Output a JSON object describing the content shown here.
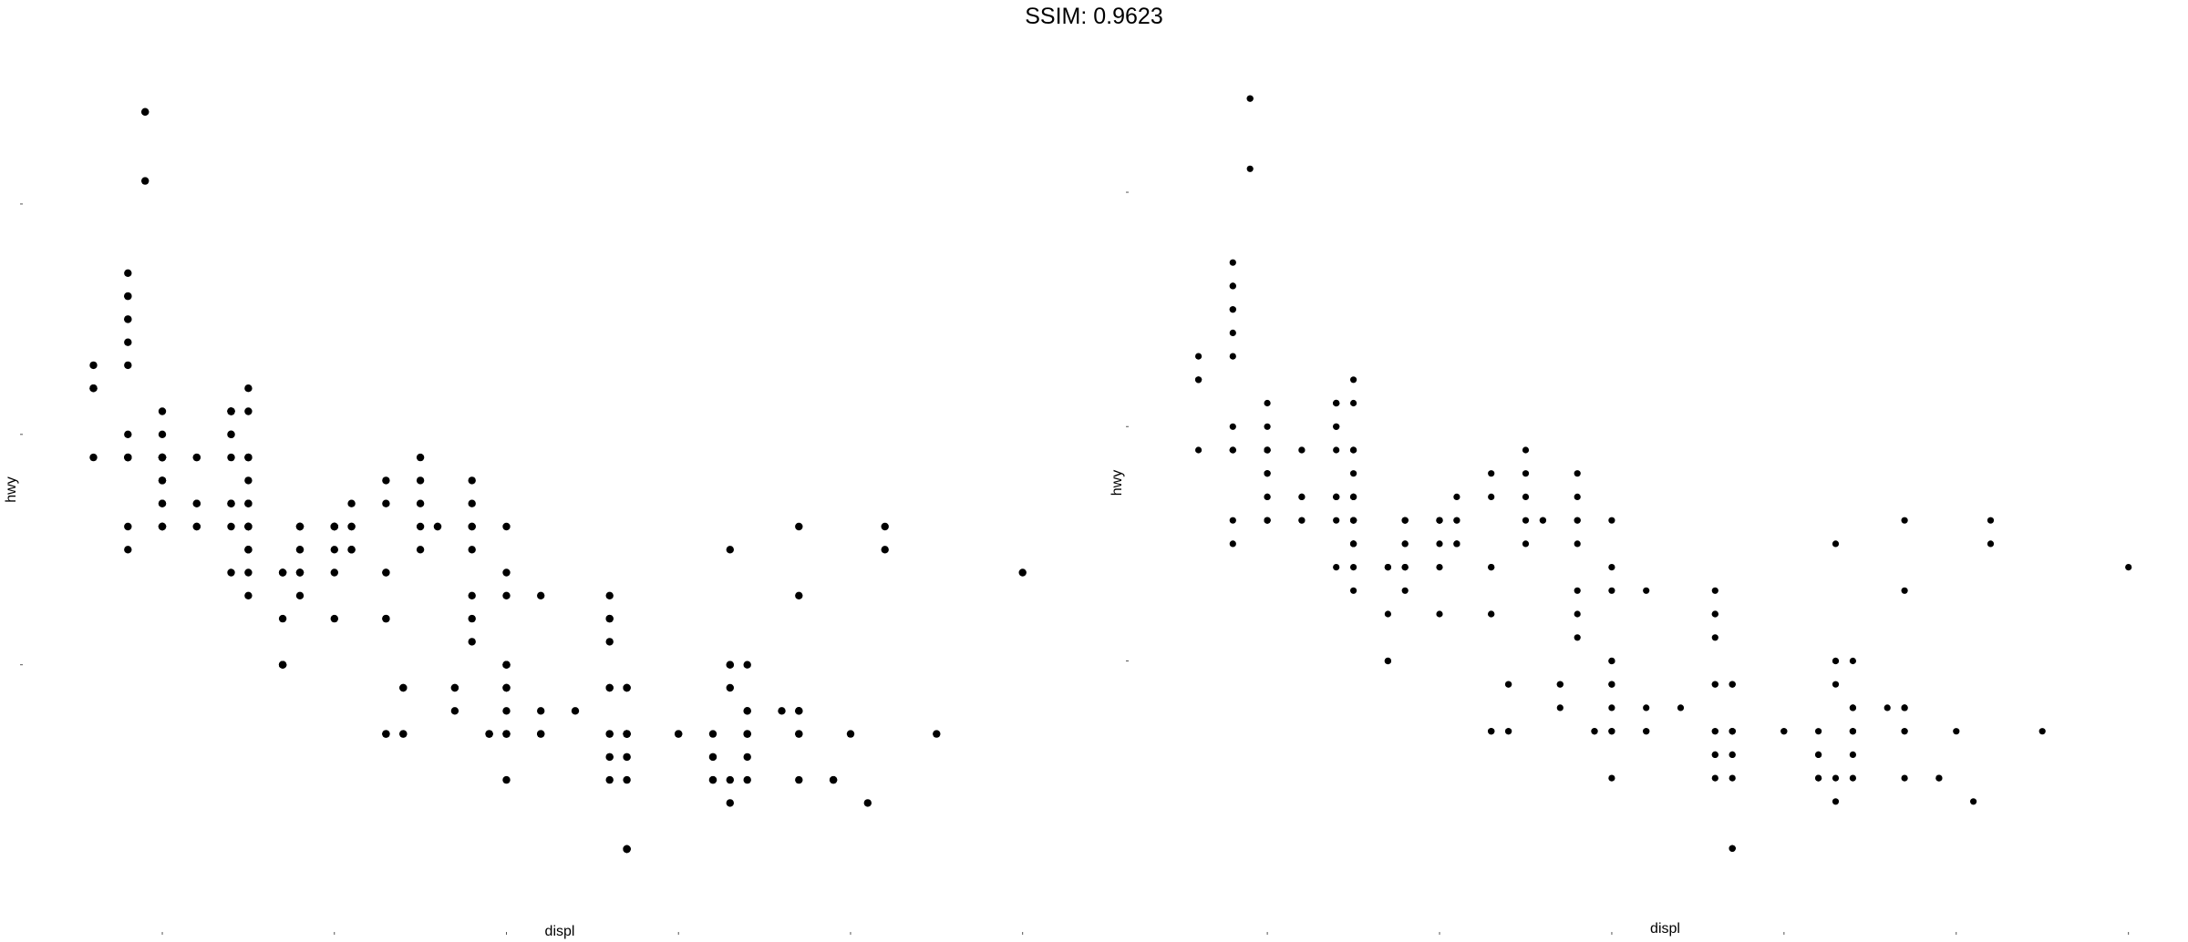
{
  "title": "SSIM: 0.9623",
  "colors": {
    "point": "#000000",
    "tick": "#555555",
    "background": "#ffffff"
  },
  "chart_data": [
    {
      "type": "scatter",
      "xlabel": "displ",
      "ylabel": "hwy",
      "xlim": [
        1.47,
        7.15
      ],
      "ylim": [
        10.3,
        44.9
      ],
      "grid": false,
      "legend": "none",
      "x": [
        1.8,
        1.8,
        2.0,
        2.0,
        2.8,
        2.8,
        3.1,
        1.8,
        1.8,
        2.0,
        2.0,
        2.8,
        2.8,
        3.1,
        3.1,
        2.8,
        3.1,
        4.2,
        5.3,
        5.3,
        5.3,
        5.7,
        6.0,
        5.7,
        5.7,
        6.2,
        6.2,
        7.0,
        5.3,
        5.3,
        5.7,
        6.5,
        2.4,
        2.4,
        3.1,
        3.5,
        3.6,
        2.4,
        3.0,
        3.3,
        3.3,
        3.3,
        3.3,
        3.3,
        3.8,
        3.8,
        3.8,
        4.0,
        3.7,
        3.7,
        3.9,
        3.9,
        4.7,
        4.7,
        4.7,
        5.2,
        5.2,
        3.9,
        4.7,
        4.7,
        4.7,
        5.2,
        5.7,
        5.9,
        4.7,
        4.7,
        4.7,
        4.7,
        4.7,
        4.7,
        5.2,
        5.2,
        5.7,
        5.9,
        4.6,
        5.4,
        5.4,
        4.0,
        4.0,
        4.0,
        4.0,
        4.6,
        5.0,
        4.2,
        4.2,
        4.6,
        4.6,
        4.6,
        5.4,
        5.4,
        3.8,
        3.8,
        4.0,
        4.0,
        4.6,
        4.6,
        4.6,
        4.6,
        5.4,
        1.6,
        1.6,
        1.6,
        1.6,
        1.6,
        1.8,
        1.8,
        1.8,
        2.0,
        2.4,
        2.4,
        2.4,
        2.4,
        2.5,
        2.5,
        3.3,
        2.0,
        2.0,
        2.0,
        2.0,
        2.7,
        2.7,
        2.7,
        3.0,
        3.7,
        4.0,
        4.7,
        4.7,
        4.7,
        5.7,
        6.1,
        4.0,
        4.2,
        4.4,
        4.6,
        5.4,
        5.4,
        5.4,
        4.0,
        4.0,
        4.6,
        5.0,
        2.4,
        2.4,
        2.5,
        2.5,
        3.5,
        3.5,
        3.0,
        3.0,
        3.5,
        3.3,
        3.3,
        4.0,
        5.6,
        3.1,
        3.8,
        3.8,
        3.8,
        5.3,
        2.5,
        2.5,
        2.5,
        2.5,
        2.5,
        2.5,
        2.2,
        2.2,
        2.5,
        2.5,
        2.5,
        2.5,
        2.5,
        2.5,
        2.7,
        2.7,
        3.4,
        3.4,
        4.0,
        4.7,
        2.2,
        2.2,
        2.4,
        2.4,
        3.0,
        3.0,
        3.5,
        2.2,
        2.2,
        2.4,
        2.4,
        3.0,
        3.0,
        3.3,
        1.8,
        1.8,
        1.8,
        1.8,
        1.8,
        4.7,
        5.7,
        2.7,
        2.7,
        2.7,
        3.4,
        3.4,
        4.0,
        4.0,
        2.0,
        2.0,
        2.0,
        2.0,
        2.8,
        1.9,
        2.0,
        2.0,
        2.0,
        2.0,
        2.5,
        2.5,
        2.8,
        2.8,
        1.9,
        1.9,
        2.0,
        2.0,
        2.5,
        2.5,
        1.8,
        1.8,
        2.0,
        2.0,
        2.8,
        2.8,
        3.6
      ],
      "y": [
        29,
        29,
        31,
        30,
        26,
        26,
        27,
        26,
        25,
        28,
        27,
        25,
        25,
        25,
        25,
        24,
        25,
        23,
        20,
        15,
        20,
        17,
        17,
        26,
        23,
        26,
        25,
        24,
        19,
        14,
        15,
        17,
        27,
        30,
        26,
        29,
        26,
        24,
        24,
        22,
        22,
        24,
        24,
        17,
        22,
        21,
        23,
        23,
        19,
        18,
        17,
        17,
        19,
        19,
        12,
        17,
        15,
        17,
        17,
        12,
        17,
        16,
        18,
        15,
        16,
        12,
        17,
        17,
        16,
        12,
        15,
        16,
        17,
        15,
        17,
        17,
        18,
        17,
        19,
        17,
        19,
        19,
        17,
        17,
        17,
        16,
        16,
        17,
        15,
        17,
        26,
        25,
        26,
        24,
        21,
        22,
        23,
        22,
        20,
        33,
        32,
        32,
        29,
        32,
        34,
        36,
        36,
        29,
        26,
        27,
        30,
        31,
        26,
        26,
        28,
        26,
        29,
        28,
        27,
        24,
        24,
        24,
        22,
        19,
        20,
        17,
        12,
        19,
        18,
        14,
        15,
        18,
        18,
        15,
        17,
        16,
        18,
        17,
        19,
        19,
        17,
        29,
        27,
        31,
        32,
        27,
        26,
        26,
        25,
        25,
        17,
        17,
        20,
        18,
        26,
        26,
        27,
        28,
        25,
        25,
        24,
        27,
        25,
        26,
        23,
        26,
        26,
        26,
        26,
        25,
        27,
        25,
        27,
        20,
        20,
        19,
        17,
        20,
        17,
        29,
        27,
        31,
        31,
        26,
        26,
        28,
        27,
        29,
        31,
        31,
        26,
        26,
        27,
        30,
        33,
        35,
        37,
        35,
        15,
        18,
        20,
        20,
        22,
        17,
        19,
        18,
        20,
        29,
        26,
        29,
        29,
        24,
        44,
        29,
        26,
        29,
        29,
        29,
        29,
        23,
        24,
        44,
        41,
        29,
        26,
        28,
        29,
        29,
        29,
        28,
        29,
        26,
        26,
        26
      ]
    },
    {
      "type": "scatter",
      "xlabel": "displ",
      "ylabel": "hwy",
      "xlim": [
        1.47,
        7.15
      ],
      "ylim": [
        10.3,
        44.9
      ],
      "grid": false,
      "legend": "none",
      "x": [
        1.8,
        1.8,
        2.0,
        2.0,
        2.8,
        2.8,
        3.1,
        1.8,
        1.8,
        2.0,
        2.0,
        2.8,
        2.8,
        3.1,
        3.1,
        2.8,
        3.1,
        4.2,
        5.3,
        5.3,
        5.3,
        5.7,
        6.0,
        5.7,
        5.7,
        6.2,
        6.2,
        7.0,
        5.3,
        5.3,
        5.7,
        6.5,
        2.4,
        2.4,
        3.1,
        3.5,
        3.6,
        2.4,
        3.0,
        3.3,
        3.3,
        3.3,
        3.3,
        3.3,
        3.8,
        3.8,
        3.8,
        4.0,
        3.7,
        3.7,
        3.9,
        3.9,
        4.7,
        4.7,
        4.7,
        5.2,
        5.2,
        3.9,
        4.7,
        4.7,
        4.7,
        5.2,
        5.7,
        5.9,
        4.7,
        4.7,
        4.7,
        4.7,
        4.7,
        4.7,
        5.2,
        5.2,
        5.7,
        5.9,
        4.6,
        5.4,
        5.4,
        4.0,
        4.0,
        4.0,
        4.0,
        4.6,
        5.0,
        4.2,
        4.2,
        4.6,
        4.6,
        4.6,
        5.4,
        5.4,
        3.8,
        3.8,
        4.0,
        4.0,
        4.6,
        4.6,
        4.6,
        4.6,
        5.4,
        1.6,
        1.6,
        1.6,
        1.6,
        1.6,
        1.8,
        1.8,
        1.8,
        2.0,
        2.4,
        2.4,
        2.4,
        2.4,
        2.5,
        2.5,
        3.3,
        2.0,
        2.0,
        2.0,
        2.0,
        2.7,
        2.7,
        2.7,
        3.0,
        3.7,
        4.0,
        4.7,
        4.7,
        4.7,
        5.7,
        6.1,
        4.0,
        4.2,
        4.4,
        4.6,
        5.4,
        5.4,
        5.4,
        4.0,
        4.0,
        4.6,
        5.0,
        2.4,
        2.4,
        2.5,
        2.5,
        3.5,
        3.5,
        3.0,
        3.0,
        3.5,
        3.3,
        3.3,
        4.0,
        5.6,
        3.1,
        3.8,
        3.8,
        3.8,
        5.3,
        2.5,
        2.5,
        2.5,
        2.5,
        2.5,
        2.5,
        2.2,
        2.2,
        2.5,
        2.5,
        2.5,
        2.5,
        2.5,
        2.5,
        2.7,
        2.7,
        3.4,
        3.4,
        4.0,
        4.7,
        2.2,
        2.2,
        2.4,
        2.4,
        3.0,
        3.0,
        3.5,
        2.2,
        2.2,
        2.4,
        2.4,
        3.0,
        3.0,
        3.3,
        1.8,
        1.8,
        1.8,
        1.8,
        1.8,
        4.7,
        5.7,
        2.7,
        2.7,
        2.7,
        3.4,
        3.4,
        4.0,
        4.0,
        2.0,
        2.0,
        2.0,
        2.0,
        2.8,
        1.9,
        2.0,
        2.0,
        2.0,
        2.0,
        2.5,
        2.5,
        2.8,
        2.8,
        1.9,
        1.9,
        2.0,
        2.0,
        2.5,
        2.5,
        1.8,
        1.8,
        2.0,
        2.0,
        2.8,
        2.8,
        3.6
      ],
      "y": [
        29,
        29,
        31,
        30,
        26,
        26,
        27,
        26,
        25,
        28,
        27,
        25,
        25,
        25,
        25,
        24,
        25,
        23,
        20,
        15,
        20,
        17,
        17,
        26,
        23,
        26,
        25,
        24,
        19,
        14,
        15,
        17,
        27,
        30,
        26,
        29,
        26,
        24,
        24,
        22,
        22,
        24,
        24,
        17,
        22,
        21,
        23,
        23,
        19,
        18,
        17,
        17,
        19,
        19,
        12,
        17,
        15,
        17,
        17,
        12,
        17,
        16,
        18,
        15,
        16,
        12,
        17,
        17,
        16,
        12,
        15,
        16,
        17,
        15,
        17,
        17,
        18,
        17,
        19,
        17,
        19,
        19,
        17,
        17,
        17,
        16,
        16,
        17,
        15,
        17,
        26,
        25,
        26,
        24,
        21,
        22,
        23,
        22,
        20,
        33,
        32,
        32,
        29,
        32,
        34,
        36,
        36,
        29,
        26,
        27,
        30,
        31,
        26,
        26,
        28,
        26,
        29,
        28,
        27,
        24,
        24,
        24,
        22,
        19,
        20,
        17,
        12,
        19,
        18,
        14,
        15,
        18,
        18,
        15,
        17,
        16,
        18,
        17,
        19,
        19,
        17,
        29,
        27,
        31,
        32,
        27,
        26,
        26,
        25,
        25,
        17,
        17,
        20,
        18,
        26,
        26,
        27,
        28,
        25,
        25,
        24,
        27,
        25,
        26,
        23,
        26,
        26,
        26,
        26,
        25,
        27,
        25,
        27,
        20,
        20,
        19,
        17,
        20,
        17,
        29,
        27,
        31,
        31,
        26,
        26,
        28,
        27,
        29,
        31,
        31,
        26,
        26,
        27,
        30,
        33,
        35,
        37,
        35,
        15,
        18,
        20,
        20,
        22,
        17,
        19,
        18,
        20,
        29,
        26,
        29,
        29,
        24,
        44,
        29,
        26,
        29,
        29,
        29,
        29,
        23,
        24,
        44,
        41,
        29,
        26,
        28,
        29,
        29,
        29,
        28,
        29,
        26,
        26,
        26
      ]
    }
  ]
}
